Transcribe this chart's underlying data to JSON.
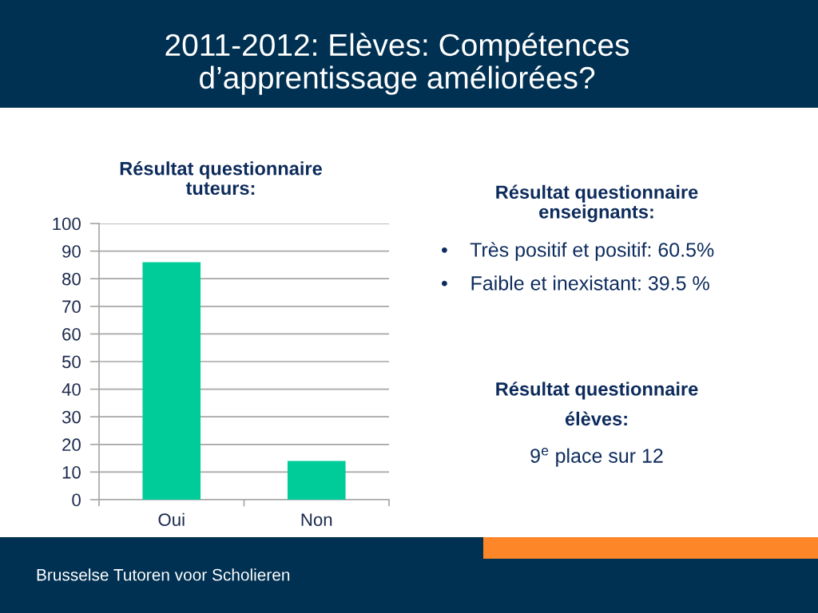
{
  "chart_data": {
    "type": "bar",
    "title": "2011-2012: Elèves: Compétences\nd’apprentissage améliorées?",
    "subtitle": "Résultat questionnaire\ntuteurs:",
    "categories": [
      "Oui",
      "Non"
    ],
    "values": [
      86,
      14
    ],
    "color": "#00cc99",
    "ylim": [
      0,
      100
    ],
    "yticks": [
      0,
      10,
      20,
      30,
      40,
      50,
      60,
      70,
      80,
      90,
      100
    ],
    "grid": "y",
    "annotations": [
      "Résultat questionnaire\nenseignants:",
      "•    Très positif et positif: 60.5%",
      "•    Faible et inexistant: 39.5 %",
      "Résultat questionnaire\nélèves:",
      "9$^{e}$ place sur 12",
      "Brusselse Tutoren voor Scholieren"
    ]
  }
}
